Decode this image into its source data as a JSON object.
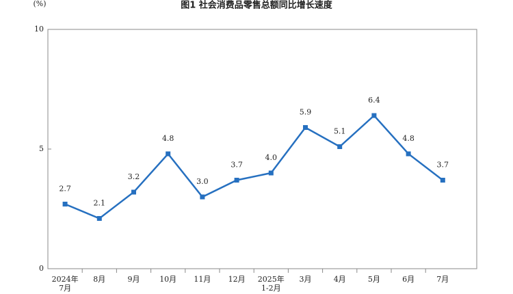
{
  "chart_data": {
    "type": "line",
    "title": "图1  社会消费品零售总额同比增长速度",
    "y_label": "(%)",
    "categories": [
      "2024年\n7月",
      "8月",
      "9月",
      "10月",
      "11月",
      "12月",
      "2025年\n1-2月",
      "3月",
      "4月",
      "5月",
      "6月",
      "7月"
    ],
    "series": [
      {
        "name": "社会消费品零售总额同比增长速度",
        "color": "#2670c0",
        "values": [
          2.7,
          2.1,
          3.2,
          4.8,
          3.0,
          3.7,
          4.0,
          5.9,
          5.1,
          6.4,
          4.8,
          3.7
        ],
        "value_labels": [
          "2.7",
          "2.1",
          "3.2",
          "4.8",
          "3.0",
          "3.7",
          "4.0",
          "5.9",
          "5.1",
          "6.4",
          "4.8",
          "3.7"
        ]
      }
    ],
    "ylim": [
      0,
      10
    ],
    "yticks": [
      0,
      5,
      10
    ],
    "grid": false
  }
}
